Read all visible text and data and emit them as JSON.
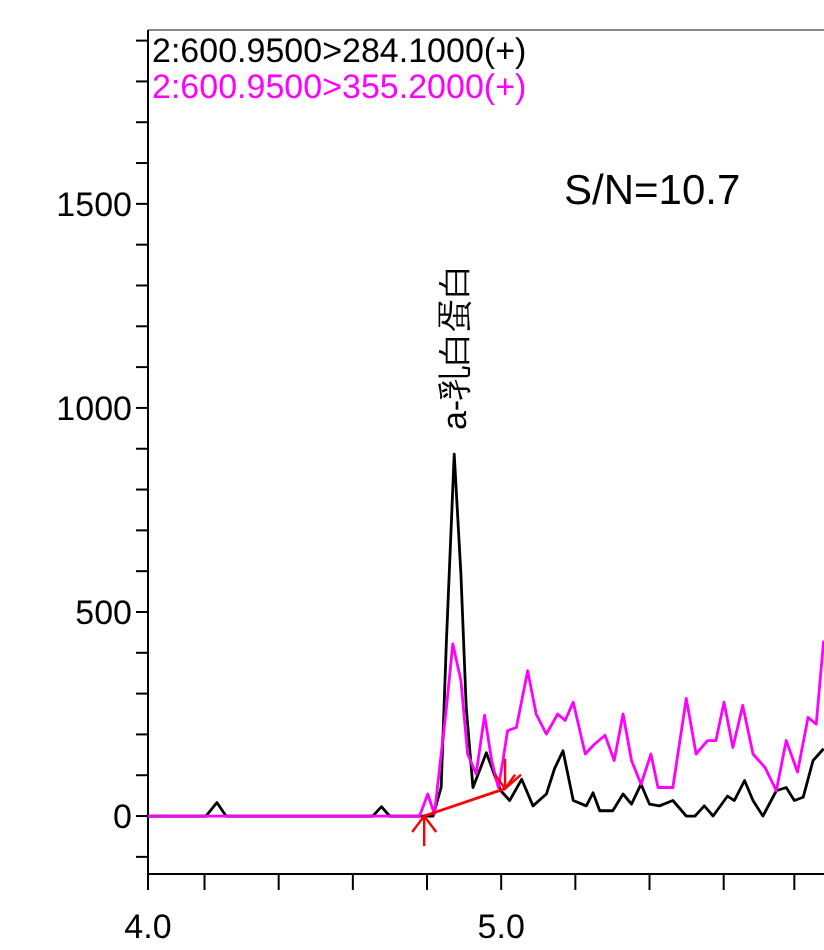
{
  "chart_data": {
    "type": "line",
    "series": [
      {
        "name": "2:600.9500>284.1000(+)",
        "color": "#000000",
        "x": [
          4.0,
          4.164,
          4.195,
          4.221,
          4.637,
          4.661,
          4.684,
          4.807,
          4.83,
          4.845,
          4.867,
          4.886,
          4.901,
          4.92,
          4.935,
          4.958,
          4.98,
          4.999,
          5.024,
          5.058,
          5.09,
          5.128,
          5.151,
          5.175,
          5.204,
          5.241,
          5.26,
          5.279,
          5.316,
          5.345,
          5.369,
          5.396,
          5.42,
          5.448,
          5.486,
          5.524,
          5.549,
          5.575,
          5.6,
          5.641,
          5.66,
          5.689,
          5.713,
          5.741,
          5.779,
          5.807,
          5.83,
          5.855,
          5.883,
          5.913
        ],
        "values": [
          0,
          0,
          33,
          0,
          0,
          23,
          0,
          0,
          70,
          430,
          887,
          593,
          266,
          70,
          103,
          155,
          103,
          62,
          38,
          90,
          25,
          54,
          116,
          160,
          38,
          25,
          57,
          13,
          13,
          54,
          29,
          78,
          29,
          25,
          38,
          0,
          0,
          25,
          0,
          49,
          38,
          87,
          38,
          0,
          62,
          70,
          38,
          46,
          136,
          165
        ]
      },
      {
        "name": "2:600.9500>355.2000(+)",
        "color": "#ff00ff",
        "x": [
          4.0,
          4.769,
          4.792,
          4.811,
          4.845,
          4.863,
          4.886,
          4.905,
          4.929,
          4.953,
          4.973,
          4.992,
          5.005,
          5.018,
          5.043,
          5.075,
          5.099,
          5.128,
          5.16,
          5.181,
          5.204,
          5.238,
          5.264,
          5.294,
          5.32,
          5.345,
          5.369,
          5.396,
          5.424,
          5.444,
          5.486,
          5.524,
          5.552,
          5.584,
          5.608,
          5.631,
          5.656,
          5.684,
          5.713,
          5.747,
          5.779,
          5.807,
          5.839,
          5.869,
          5.892,
          5.913
        ],
        "values": [
          0,
          0,
          54,
          5,
          266,
          422,
          332,
          152,
          103,
          247,
          136,
          70,
          136,
          209,
          217,
          356,
          250,
          201,
          250,
          234,
          279,
          152,
          176,
          198,
          136,
          250,
          136,
          78,
          152,
          70,
          70,
          288,
          152,
          185,
          185,
          279,
          168,
          271,
          152,
          119,
          62,
          185,
          108,
          242,
          225,
          430
        ]
      },
      {
        "type": "line",
        "color": "#ff0000",
        "x": [
          4.782,
          5.011
        ],
        "values": [
          0,
          67
        ]
      }
    ],
    "xlim": [
      4.0,
      5.914
    ],
    "ylim": [
      -142,
      1926
    ],
    "xticks": [
      {
        "value": 4.0,
        "label": "4.0"
      },
      {
        "value": 4.16,
        "label": null
      },
      {
        "value": 4.37,
        "label": null
      },
      {
        "value": 4.58,
        "label": null
      },
      {
        "value": 4.79,
        "label": null
      },
      {
        "value": 5.0,
        "label": "5.0"
      },
      {
        "value": 5.21,
        "label": null
      },
      {
        "value": 5.42,
        "label": null
      },
      {
        "value": 5.63,
        "label": null
      },
      {
        "value": 5.83,
        "label": null
      }
    ],
    "yticks": [
      {
        "value": -100,
        "label": null
      },
      0,
      {
        "value": 100,
        "label": null
      },
      {
        "value": 200,
        "label": null
      },
      {
        "value": 300,
        "label": null
      },
      {
        "value": 400,
        "label": null
      },
      500,
      {
        "value": 600,
        "label": null
      },
      {
        "value": 700,
        "label": null
      },
      {
        "value": 800,
        "label": null
      },
      {
        "value": 900,
        "label": null
      },
      1000,
      {
        "value": 1100,
        "label": null
      },
      {
        "value": 1200,
        "label": null
      },
      {
        "value": 1300,
        "label": null
      },
      {
        "value": 1400,
        "label": null
      },
      1500,
      {
        "value": 1600,
        "label": null
      },
      {
        "value": 1700,
        "label": null
      },
      {
        "value": 1800,
        "label": null
      },
      {
        "value": 1900,
        "label": null
      }
    ],
    "legend": "top left",
    "annotations": [
      "S/N=10.7",
      {
        "text": "a-乳白蛋白",
        "x": 4.867,
        "y": 887
      }
    ]
  }
}
